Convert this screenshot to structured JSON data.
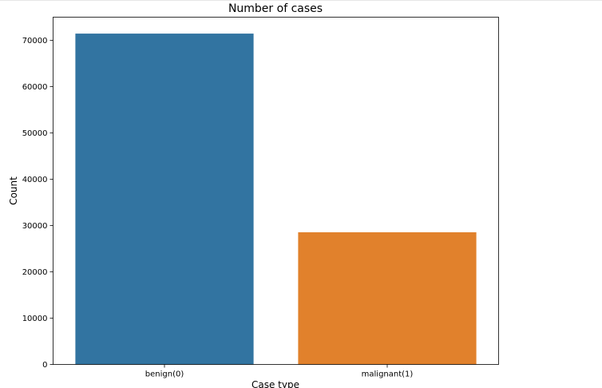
{
  "chart_data": {
    "type": "bar",
    "title": "Number of cases",
    "xlabel": "Case type",
    "ylabel": "Count",
    "categories": [
      "benign(0)",
      "malignant(1)"
    ],
    "values": [
      71450,
      28550
    ],
    "colors": [
      "#3274a1",
      "#e1812c"
    ],
    "ylim": [
      0,
      75000
    ],
    "yticks": [
      0,
      10000,
      20000,
      30000,
      40000,
      50000,
      60000,
      70000
    ],
    "ytick_labels": [
      "0",
      "10000",
      "20000",
      "30000",
      "40000",
      "50000",
      "60000",
      "70000"
    ],
    "grid": false,
    "legend": "none"
  }
}
